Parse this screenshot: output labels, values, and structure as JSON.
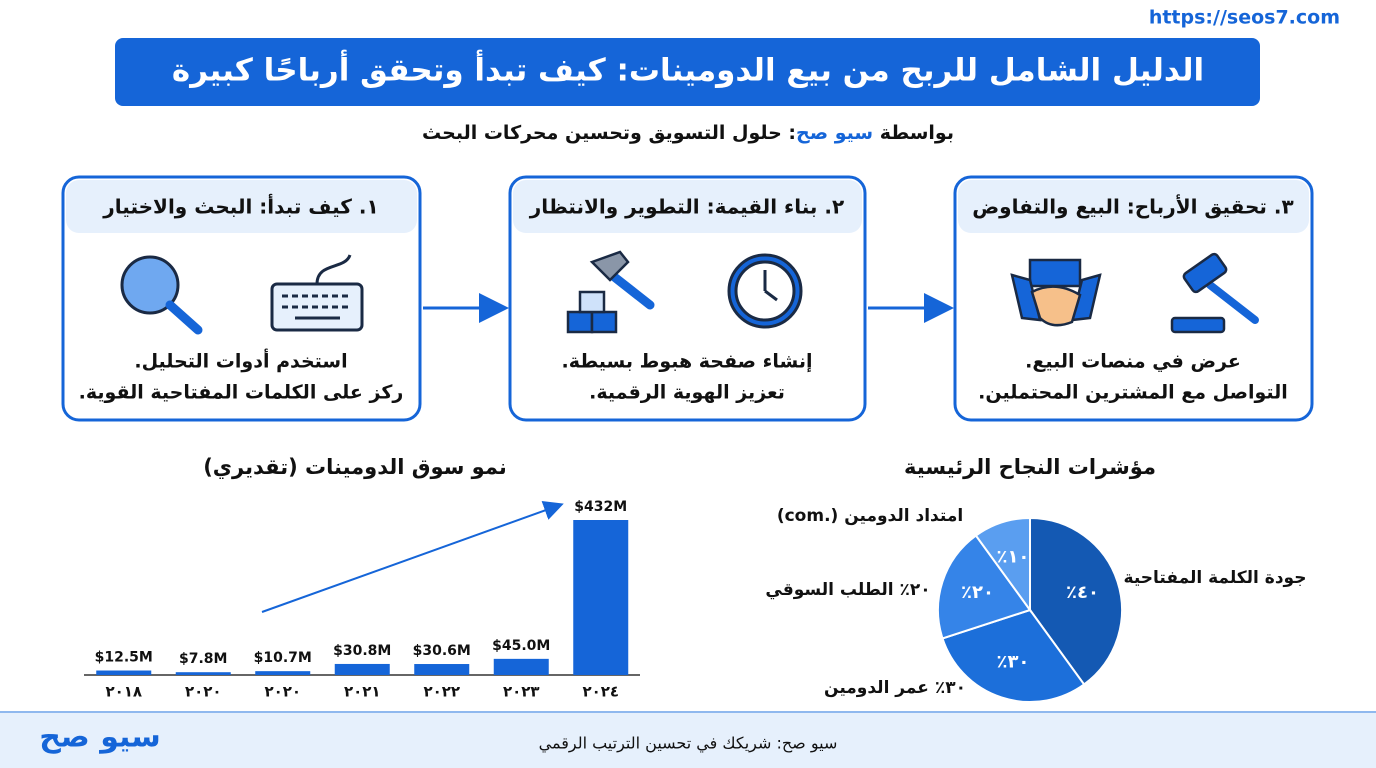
{
  "header": {
    "url": "https://seos7.com",
    "title": "الدليل الشامل للربح من بيع الدومينات: كيف تبدأ وتحقق أرباحًا كبيرة",
    "subtitle_prefix": "بواسطة",
    "subtitle_brand": "سيو صح",
    "subtitle_rest": ": حلول التسويق وتحسين محركات البحث"
  },
  "steps": [
    {
      "title": "١. كيف تبدأ: البحث والاختيار",
      "lines": [
        "استخدم أدوات التحليل.",
        "ركز على الكلمات المفتاحية القوية."
      ]
    },
    {
      "title": "٢. بناء القيمة: التطوير والانتظار",
      "lines": [
        "إنشاء صفحة هبوط بسيطة.",
        "تعزيز الهوية الرقمية."
      ]
    },
    {
      "title": "٣. تحقيق الأرباح: البيع والتفاوض",
      "lines": [
        "عرض في منصات البيع.",
        "التواصل مع المشترين المحتملين."
      ]
    }
  ],
  "chart_data": [
    {
      "type": "bar",
      "title": "نمو سوق الدومينات (تقديري)",
      "categories": [
        "٢٠١٨",
        "٢٠٢٠",
        "٢٠٢٠",
        "٢٠٢١",
        "٢٠٢٢",
        "٢٠٢٣",
        "٢٠٢٤"
      ],
      "values": [
        12.5,
        7.8,
        10.7,
        30.8,
        30.6,
        45.0,
        432
      ],
      "value_labels": [
        "$12.5M",
        "$7.8M",
        "$10.7M",
        "$30.8M",
        "$30.6M",
        "$45.0M",
        "$432M"
      ],
      "color": "#1565d8"
    },
    {
      "type": "pie",
      "title": "مؤشرات النجاح الرئيسية",
      "categories": [
        "جودة الكلمة المفتاحية",
        "٣٠٪ عمر الدومين",
        "٢٠٪ الطلب السوقي",
        "امتداد الدومين (.com)"
      ],
      "values": [
        40,
        30,
        20,
        10
      ],
      "value_labels": [
        "٪٤٠",
        "٪٣٠",
        "٪٢٠",
        "٪١٠"
      ],
      "colors": [
        "#1459b3",
        "#1c6fda",
        "#3584e8",
        "#5a9ef0"
      ]
    }
  ],
  "footer": {
    "logo": "سيو صح",
    "tagline": "سيو صح: شريكك في تحسين الترتيب الرقمي"
  }
}
